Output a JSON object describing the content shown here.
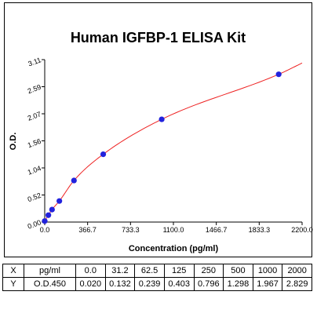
{
  "chart_data": {
    "type": "scatter",
    "title": "Human IGFBP-1 ELISA Kit",
    "xlabel": "Concentration (pg/ml)",
    "ylabel": "O.D.",
    "xlim": [
      0,
      2200
    ],
    "ylim": [
      0,
      3.11
    ],
    "x_ticks": [
      "0.0",
      "366.7",
      "733.3",
      "1100.0",
      "1466.7",
      "1833.3",
      "2200.0"
    ],
    "y_ticks": [
      "0.00",
      "0.52",
      "1.04",
      "1.56",
      "2.07",
      "2.59",
      "3.11"
    ],
    "series": [
      {
        "x": [
          0,
          31.2,
          62.5,
          125,
          250,
          500,
          1000,
          2000
        ],
        "y": [
          0.02,
          0.132,
          0.239,
          0.403,
          0.796,
          1.298,
          1.967,
          2.829
        ],
        "marker_color": "#2222dd",
        "fit_line_color": "#ee2222"
      }
    ],
    "grid": false,
    "legend": "none"
  },
  "table": {
    "rows": [
      {
        "label": "X",
        "unit": "pg/ml",
        "values": [
          "0.0",
          "31.2",
          "62.5",
          "125",
          "250",
          "500",
          "1000",
          "2000"
        ]
      },
      {
        "label": "Y",
        "unit": "O.D.450",
        "values": [
          "0.020",
          "0.132",
          "0.239",
          "0.403",
          "0.796",
          "1.298",
          "1.967",
          "2.829"
        ]
      }
    ]
  }
}
